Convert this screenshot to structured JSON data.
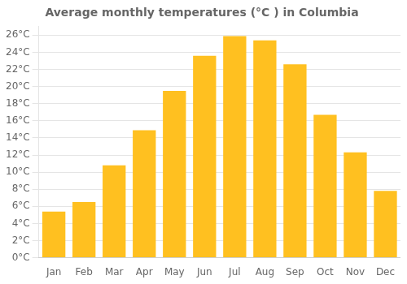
{
  "chart_data": {
    "type": "bar",
    "title": "Average monthly temperatures (°C ) in Columbia",
    "categories": [
      "Jan",
      "Feb",
      "Mar",
      "Apr",
      "May",
      "Jun",
      "Jul",
      "Aug",
      "Sep",
      "Oct",
      "Nov",
      "Dec"
    ],
    "values": [
      5.4,
      6.5,
      10.8,
      14.9,
      19.5,
      23.6,
      25.9,
      25.4,
      22.6,
      16.7,
      12.3,
      7.8
    ],
    "color": "#FFC020",
    "ylim": [
      0,
      27
    ],
    "yticks": [
      {
        "value": 0,
        "label": "0°C"
      },
      {
        "value": 2,
        "label": "2°C"
      },
      {
        "value": 4,
        "label": "4°C"
      },
      {
        "value": 6,
        "label": "6°C"
      },
      {
        "value": 8,
        "label": "8°C"
      },
      {
        "value": 10,
        "label": "10°C"
      },
      {
        "value": 12,
        "label": "12°C"
      },
      {
        "value": 14,
        "label": "14°C"
      },
      {
        "value": 16,
        "label": "16°C"
      },
      {
        "value": 18,
        "label": "18°C"
      },
      {
        "value": 20,
        "label": "20°C"
      },
      {
        "value": 22,
        "label": "22°C"
      },
      {
        "value": 24,
        "label": "24°C"
      },
      {
        "value": 26,
        "label": "26°C"
      }
    ],
    "grid": true
  }
}
